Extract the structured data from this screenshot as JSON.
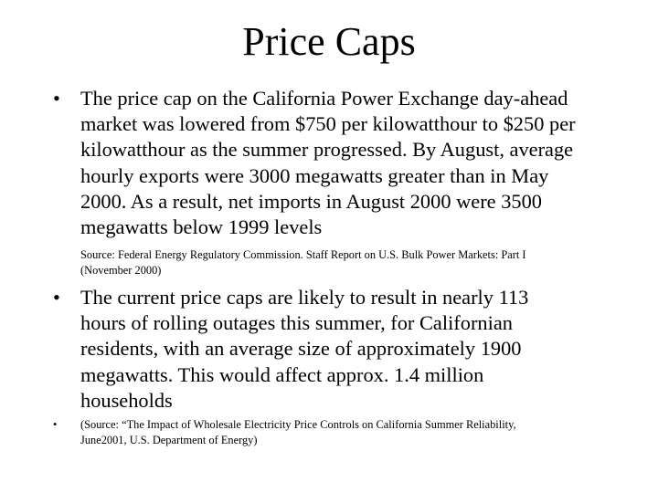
{
  "slide": {
    "title": "Price Caps",
    "bullet_marker": "•",
    "bullet_1": {
      "text": "The price cap on the California Power Exchange day-ahead\nmarket was lowered from $750 per kilowatthour to $250 per\nkilowatthour as the summer progressed. By August, average\nhourly exports were 3000 megawatts greater than in May\n2000. As a result, net imports in August 2000 were 3500\nmegawatts below 1999 levels"
    },
    "source_1": "Source: Federal Energy Regulatory Commission. Staff Report on U.S. Bulk Power Markets: Part I\n(November 2000)",
    "bullet_2": {
      "text": "The current price caps are likely to result in nearly 113\nhours of rolling outages this summer, for Californian\nresidents, with an average size of approximately 1900\nmegawatts. This would affect approx. 1.4 million\nhouseholds"
    },
    "bullet_3": {
      "text": "(Source: “The Impact of Wholesale Electricity Price Controls on California Summer Reliability,\nJune2001, U.S. Department of Energy)"
    }
  }
}
